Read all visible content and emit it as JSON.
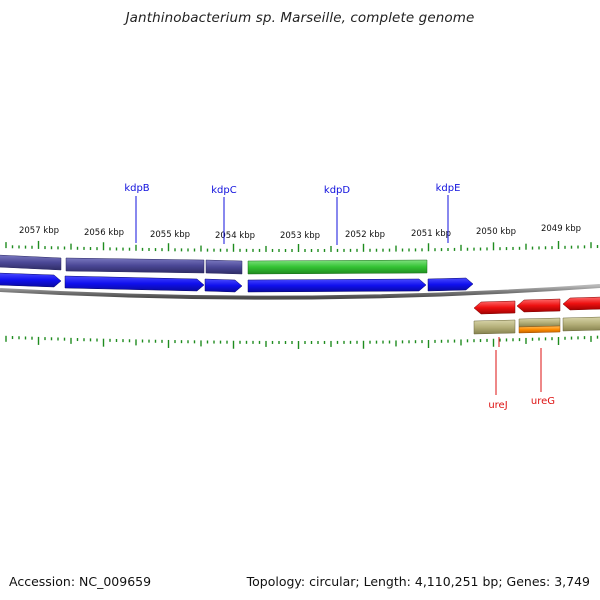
{
  "title": "Janthinobacterium sp. Marseille, complete genome",
  "footer": {
    "accession": "Accession: NC_009659",
    "summary": "Topology: circular; Length: 4,110,251 bp; Genes: 3,749"
  },
  "colors": {
    "background": "#ffffff",
    "backbone": "#808080",
    "tick": "#1e8c1e",
    "ruler_label": "#111111",
    "cds": "#1010ee",
    "operon_purple": "#4b4896",
    "green_feature": "#33c233",
    "red_gene": "#ee1111",
    "khaki": "#b5b07a",
    "orange": "#ff8c00",
    "blue_label": "#1010dd",
    "red_label": "#dd1111"
  },
  "ruler": {
    "labels": [
      "2057 kbp",
      "2056 kbp",
      "2055 kbp",
      "2054 kbp",
      "2053 kbp",
      "2052 kbp",
      "2051 kbp",
      "2050 kbp",
      "2049 kbp"
    ]
  },
  "gene_labels": {
    "forward": [
      "kdpB",
      "kdpC",
      "kdpD",
      "kdpE"
    ],
    "reverse": [
      "ureJ",
      "ureG"
    ]
  }
}
